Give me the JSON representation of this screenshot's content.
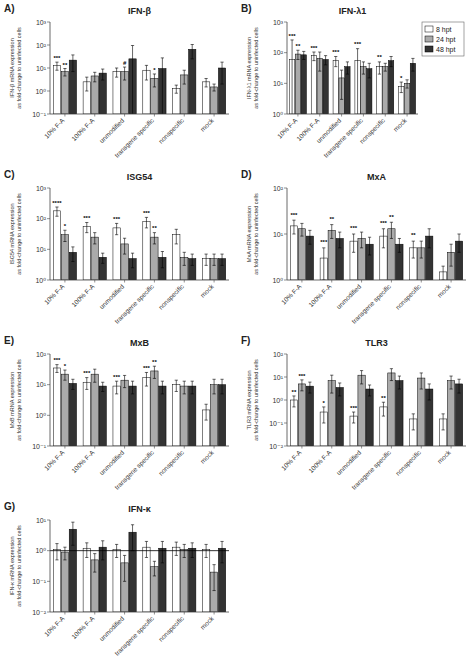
{
  "chart_data": [
    {
      "type": "bar",
      "label": "A)",
      "title": "IFN-β",
      "ylabel": "IFN-β mRNA expression\nas fold-change to uninfected cells",
      "categories": [
        "10% F-A",
        "100% F-A",
        "unmodified",
        "transgene specific",
        "nonspecific",
        "mock"
      ],
      "series": [
        {
          "name": "8 hpt",
          "color": "#ffffff",
          "values": [
            13.0,
            2.5,
            7.0,
            8.0,
            1.3,
            2.5
          ],
          "errors": [
            5.0,
            1.5,
            3.0,
            5.0,
            0.5,
            1.0
          ],
          "significance": [
            "***",
            null,
            null,
            null,
            null,
            null
          ]
        },
        {
          "name": "24 hpt",
          "color": "#aaaaaa",
          "values": [
            7.0,
            4.5,
            7.0,
            3.5,
            5.0,
            1.5
          ],
          "errors": [
            2.5,
            2.0,
            4.0,
            2.0,
            3.0,
            0.5
          ],
          "significance": [
            "**",
            null,
            "#",
            "*",
            null,
            null
          ]
        },
        {
          "name": "48 hpt",
          "color": "#333333",
          "values": [
            22.0,
            6.0,
            25.0,
            9.5,
            65.0,
            10.0
          ],
          "errors": [
            15.0,
            3.0,
            70.0,
            18.0,
            40.0,
            8.0
          ],
          "significance": [
            null,
            null,
            null,
            null,
            null,
            null
          ]
        }
      ],
      "log": "y",
      "ylim": [
        0.1,
        1000.0
      ],
      "yticks": [
        {
          "value": 0.1,
          "label": "10⁻¹"
        },
        {
          "value": 1.0,
          "label": "10⁰"
        },
        {
          "value": 10.0,
          "label": "10¹"
        },
        {
          "value": 100.0,
          "label": "10²"
        },
        {
          "value": 1000.0,
          "label": "10³"
        }
      ],
      "grid": false,
      "legend": false
    },
    {
      "type": "bar",
      "label": "B)",
      "title": "IFN-λ1",
      "ylabel": "IFN-λ1 mRNA expression\nas fold-change to uninfected cells",
      "categories": [
        "10% F-A",
        "100% F-A",
        "unmodified",
        "transgene specific",
        "nonspecific",
        "mock"
      ],
      "series": [
        {
          "name": "8 hpt",
          "color": "#ffffff",
          "values": [
            60.0,
            80.0,
            55.0,
            55.0,
            35.0,
            8.0
          ],
          "errors": [
            200.0,
            25.0,
            20.0,
            80.0,
            15.0,
            3.0
          ],
          "significance": [
            "***",
            "***",
            "***",
            "***",
            "**",
            "*"
          ]
        },
        {
          "name": "24 hpt",
          "color": "#aaaaaa",
          "values": [
            90.0,
            65.0,
            15.0,
            35.0,
            35.0,
            10.0
          ],
          "errors": [
            30.0,
            40.0,
            12.0,
            15.0,
            10.0,
            3.0
          ],
          "significance": [
            "**",
            null,
            null,
            null,
            null,
            null
          ]
        },
        {
          "name": "48 hpt",
          "color": "#333333",
          "values": [
            85.0,
            60.0,
            35.0,
            30.0,
            55.0,
            45.0
          ],
          "errors": [
            25.0,
            20.0,
            15.0,
            15.0,
            20.0,
            20.0
          ],
          "significance": [
            null,
            null,
            null,
            null,
            null,
            null
          ]
        }
      ],
      "log": "y",
      "ylim": [
        1.0,
        1000.0
      ],
      "yticks": [
        {
          "value": 1.0,
          "label": "10⁰"
        },
        {
          "value": 10.0,
          "label": "10¹"
        },
        {
          "value": 100.0,
          "label": "10²"
        },
        {
          "value": 1000.0,
          "label": "10³"
        }
      ],
      "grid": false,
      "legend": "upper right"
    },
    {
      "type": "bar",
      "label": "C)",
      "title": "ISG54",
      "ylabel": "ISG54 mRNA expression\nas fold-change to uninfected cells",
      "categories": [
        "10% F-A",
        "100% F-A",
        "unmodified",
        "transgene specific",
        "nonspecific",
        "mock"
      ],
      "series": [
        {
          "name": "8 hpt",
          "color": "#ffffff",
          "values": [
            180.0,
            55.0,
            50.0,
            80.0,
            30.0,
            5.0
          ],
          "errors": [
            60.0,
            20.0,
            20.0,
            30.0,
            15.0,
            2.0
          ],
          "significance": [
            "****",
            "***",
            "***",
            "***",
            null,
            null
          ]
        },
        {
          "name": "24 hpt",
          "color": "#aaaaaa",
          "values": [
            30.0,
            25.0,
            15.0,
            25.0,
            5.5,
            5.0
          ],
          "errors": [
            12.0,
            10.0,
            8.0,
            10.0,
            2.5,
            2.0
          ],
          "significance": [
            "*",
            null,
            null,
            "**",
            null,
            null
          ]
        },
        {
          "name": "48 hpt",
          "color": "#333333",
          "values": [
            8.0,
            5.5,
            5.0,
            5.5,
            5.0,
            5.0
          ],
          "errors": [
            4.0,
            2.0,
            2.5,
            3.0,
            2.0,
            2.0
          ],
          "significance": [
            null,
            null,
            null,
            null,
            null,
            null
          ]
        }
      ],
      "log": "y",
      "ylim": [
        1.0,
        1000.0
      ],
      "yticks": [
        {
          "value": 1.0,
          "label": "10⁰"
        },
        {
          "value": 10.0,
          "label": "10¹"
        },
        {
          "value": 100.0,
          "label": "10²"
        },
        {
          "value": 1000.0,
          "label": "10³"
        }
      ],
      "grid": false,
      "legend": false
    },
    {
      "type": "bar",
      "label": "D)",
      "title": "MxA",
      "ylabel": "MxA mRNA expression\nas fold-change to uninfected cells",
      "categories": [
        "10% F-A",
        "100% F-A",
        "unmodified",
        "transgene specific",
        "nonspecific",
        "mock"
      ],
      "series": [
        {
          "name": "8 hpt",
          "color": "#ffffff",
          "values": [
            15.0,
            3.0,
            7.0,
            9.0,
            5.0,
            1.5
          ],
          "errors": [
            5.0,
            2.0,
            3.0,
            4.0,
            2.0,
            0.5
          ],
          "significance": [
            "***",
            "***",
            "***",
            "***",
            "**",
            null
          ]
        },
        {
          "name": "24 hpt",
          "color": "#aaaaaa",
          "values": [
            13.0,
            12.0,
            8.0,
            13.0,
            5.0,
            4.0
          ],
          "errors": [
            4.0,
            4.0,
            3.0,
            5.0,
            2.0,
            2.0
          ],
          "significance": [
            null,
            "**",
            null,
            "**",
            null,
            null
          ]
        },
        {
          "name": "48 hpt",
          "color": "#333333",
          "values": [
            9.0,
            8.0,
            6.0,
            6.0,
            9.0,
            7.0
          ],
          "errors": [
            3.0,
            3.0,
            2.5,
            2.0,
            4.0,
            3.0
          ],
          "significance": [
            null,
            null,
            null,
            null,
            null,
            null
          ]
        }
      ],
      "log": "y",
      "ylim": [
        1.0,
        100.0
      ],
      "yticks": [
        {
          "value": 1.0,
          "label": "10⁰"
        },
        {
          "value": 10.0,
          "label": "10¹"
        },
        {
          "value": 100.0,
          "label": "10²"
        }
      ],
      "grid": false,
      "legend": false
    },
    {
      "type": "bar",
      "label": "E)",
      "title": "MxB",
      "ylabel": "MxB mRNA expression\nas fold-change to uninfected cells",
      "categories": [
        "10% F-A",
        "100% F-A",
        "unmodified",
        "transgene specific",
        "nonspecific",
        "mock"
      ],
      "series": [
        {
          "name": "8 hpt",
          "color": "#ffffff",
          "values": [
            35.0,
            12.0,
            9.0,
            17.0,
            10.0,
            1.5
          ],
          "errors": [
            10.0,
            5.0,
            4.0,
            8.0,
            4.0,
            0.8
          ],
          "significance": [
            "***",
            "***",
            "***",
            "***",
            null,
            null
          ]
        },
        {
          "name": "24 hpt",
          "color": "#aaaaaa",
          "values": [
            22.0,
            22.0,
            14.0,
            28.0,
            9.0,
            10.0
          ],
          "errors": [
            8.0,
            10.0,
            6.0,
            12.0,
            4.0,
            5.0
          ],
          "significance": [
            "*",
            null,
            null,
            "**",
            null,
            null
          ]
        },
        {
          "name": "48 hpt",
          "color": "#333333",
          "values": [
            11.0,
            9.0,
            9.0,
            9.0,
            9.0,
            10.0
          ],
          "errors": [
            4.0,
            3.0,
            4.0,
            4.0,
            4.0,
            5.0
          ],
          "significance": [
            null,
            null,
            null,
            null,
            null,
            null
          ]
        }
      ],
      "log": "y",
      "ylim": [
        0.1,
        100.0
      ],
      "yticks": [
        {
          "value": 0.1,
          "label": "10⁻¹"
        },
        {
          "value": 1.0,
          "label": "10⁰"
        },
        {
          "value": 10.0,
          "label": "10¹"
        },
        {
          "value": 100.0,
          "label": "10²"
        }
      ],
      "grid": false,
      "legend": false
    },
    {
      "type": "bar",
      "label": "F)",
      "title": "TLR3",
      "ylabel": "TLR3 mRNA expression\nas fold-change to uninfected cells",
      "categories": [
        "10% F-A",
        "100% F-A",
        "unmodified",
        "transgene specific",
        "nonspecific",
        "mock"
      ],
      "series": [
        {
          "name": "8 hpt",
          "color": "#ffffff",
          "values": [
            1.0,
            0.3,
            0.2,
            0.5,
            0.15,
            0.15
          ],
          "errors": [
            0.5,
            0.2,
            0.1,
            0.3,
            0.1,
            0.1
          ],
          "significance": [
            "**",
            "*",
            "***",
            "**",
            null,
            null
          ]
        },
        {
          "name": "24 hpt",
          "color": "#aaaaaa",
          "values": [
            5.0,
            7.0,
            12.0,
            15.0,
            9.0,
            7.0
          ],
          "errors": [
            2.5,
            5.0,
            7.0,
            8.0,
            6.0,
            4.0
          ],
          "significance": [
            "***",
            null,
            null,
            null,
            null,
            null
          ]
        },
        {
          "name": "48 hpt",
          "color": "#333333",
          "values": [
            4.0,
            3.5,
            3.0,
            7.0,
            3.0,
            5.0
          ],
          "errors": [
            2.0,
            2.0,
            1.5,
            4.0,
            2.0,
            3.0
          ],
          "significance": [
            null,
            null,
            null,
            null,
            null,
            null
          ]
        }
      ],
      "log": "y",
      "ylim": [
        0.01,
        100.0
      ],
      "yticks": [
        {
          "value": 0.01,
          "label": "10⁻²"
        },
        {
          "value": 0.1,
          "label": "10⁻¹"
        },
        {
          "value": 1.0,
          "label": "10⁰"
        },
        {
          "value": 10.0,
          "label": "10¹"
        },
        {
          "value": 100.0,
          "label": "10²"
        }
      ],
      "grid": false,
      "legend": false
    },
    {
      "type": "bar",
      "label": "G)",
      "title": "IFN-κ",
      "ylabel": "IFN-κ mRNA expression\nas fold-change to uninfected cells",
      "categories": [
        "10% F-A",
        "100% F-A",
        "unmodified",
        "transgene specific",
        "nonspecific",
        "mock"
      ],
      "series": [
        {
          "name": "8 hpt",
          "color": "#ffffff",
          "values": [
            1.1,
            1.2,
            1.1,
            1.3,
            1.3,
            1.1
          ],
          "errors": [
            0.6,
            0.6,
            0.5,
            0.7,
            0.6,
            0.5
          ],
          "significance": [
            null,
            null,
            null,
            null,
            null,
            null
          ]
        },
        {
          "name": "24 hpt",
          "color": "#aaaaaa",
          "values": [
            0.9,
            0.5,
            0.4,
            0.3,
            1.1,
            0.2
          ],
          "errors": [
            0.4,
            0.3,
            0.3,
            0.15,
            0.5,
            0.15
          ],
          "significance": [
            null,
            null,
            null,
            null,
            null,
            null
          ]
        },
        {
          "name": "48 hpt",
          "color": "#333333",
          "values": [
            5.0,
            1.3,
            4.0,
            1.2,
            1.2,
            1.2
          ],
          "errors": [
            3.5,
            0.8,
            3.0,
            0.8,
            0.6,
            0.8
          ],
          "significance": [
            null,
            null,
            null,
            null,
            null,
            null
          ]
        }
      ],
      "log": "y",
      "ylim": [
        0.01,
        10.0
      ],
      "yticks": [
        {
          "value": 0.01,
          "label": "10⁻²"
        },
        {
          "value": 0.1,
          "label": "10⁻¹"
        },
        {
          "value": 1.0,
          "label": "10⁰"
        },
        {
          "value": 10.0,
          "label": "10¹"
        }
      ],
      "reference_line": 1.0,
      "grid": false,
      "legend": false
    }
  ]
}
